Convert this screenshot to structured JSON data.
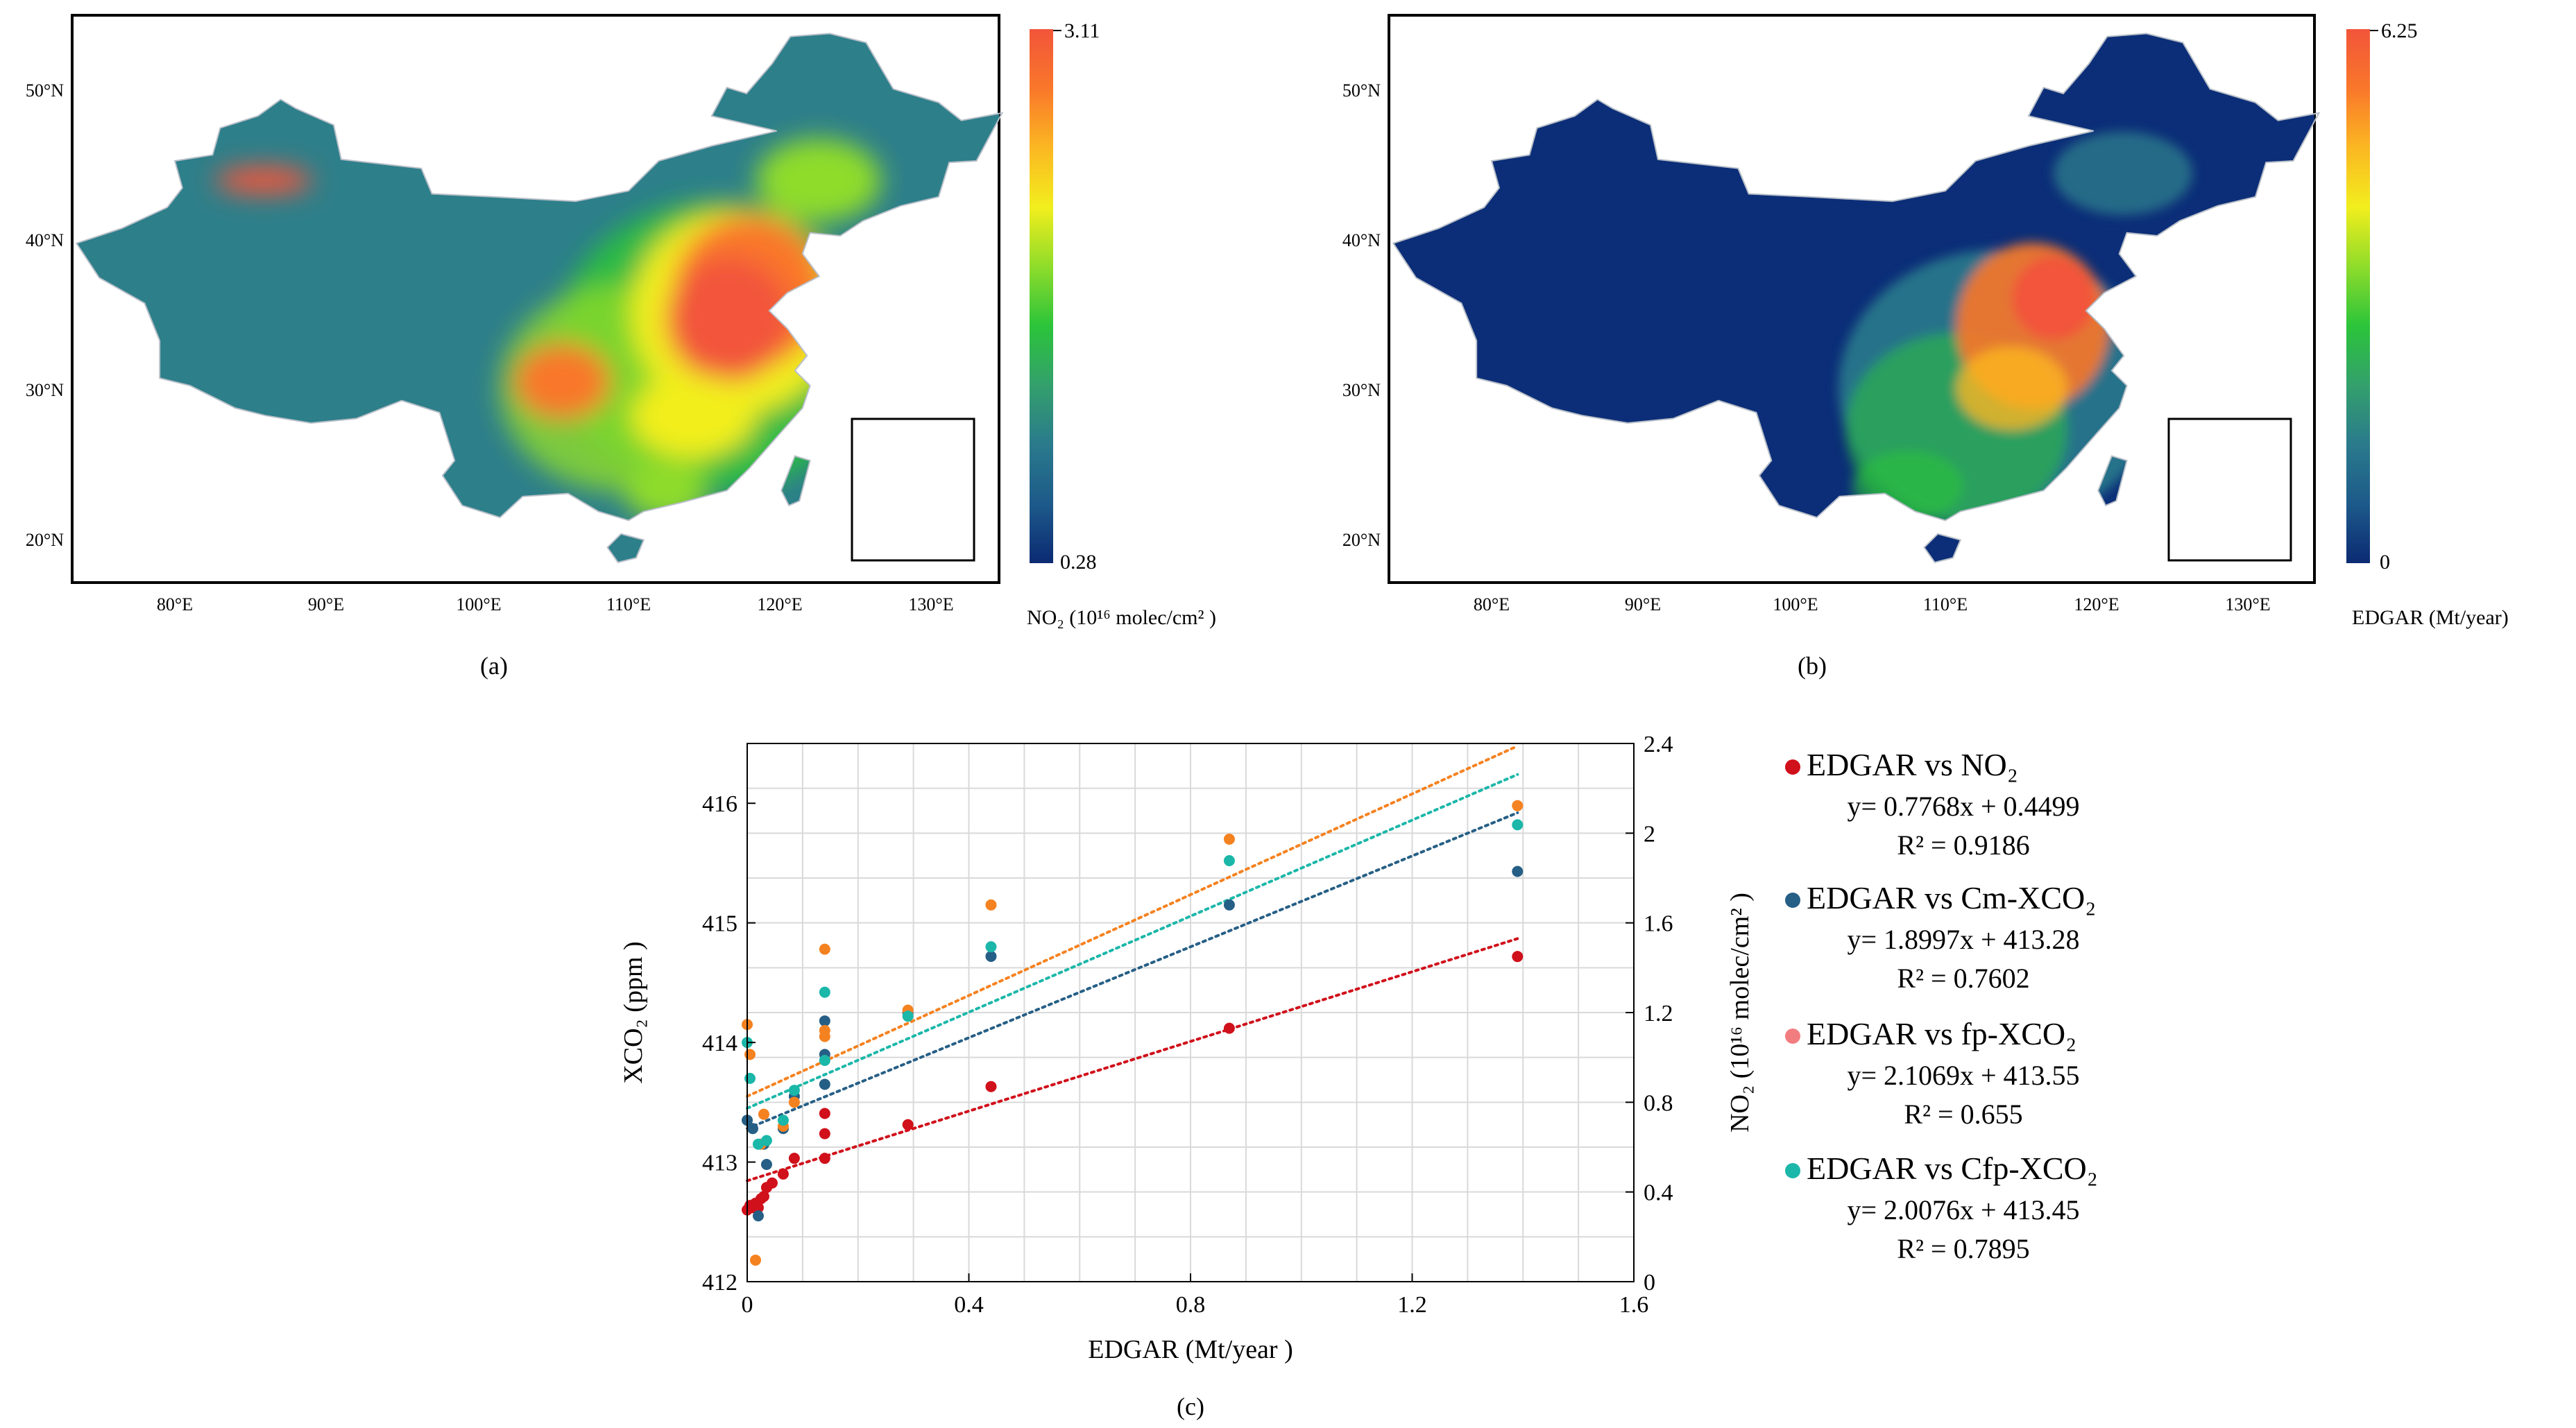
{
  "panels": {
    "a": {
      "label": "(a)",
      "lat_ticks": [
        "50°N",
        "40°N",
        "30°N",
        "20°N"
      ],
      "lon_ticks": [
        "80°E",
        "90°E",
        "100°E",
        "110°E",
        "120°E",
        "130°E"
      ],
      "colorbar": {
        "max": "3.11",
        "min": "0.28",
        "title": "NO₂ (10¹⁶ molec/cm² )",
        "colors": [
          "#0b2a72",
          "#1d5a8a",
          "#2a7a8c",
          "#33a06c",
          "#2bc43a",
          "#8fdc2a",
          "#f2ee1d",
          "#fbb722",
          "#f9772a",
          "#f2553a"
        ]
      }
    },
    "b": {
      "label": "(b)",
      "lat_ticks": [
        "50°N",
        "40°N",
        "30°N",
        "20°N"
      ],
      "lon_ticks": [
        "80°E",
        "90°E",
        "100°E",
        "110°E",
        "120°E",
        "130°E"
      ],
      "colorbar": {
        "max": "6.25",
        "min": "0",
        "title": "EDGAR (Mt/year)",
        "colors": [
          "#0b2a72",
          "#1d5a8a",
          "#2a7a8c",
          "#33a06c",
          "#2bc43a",
          "#8fdc2a",
          "#f2ee1d",
          "#fbb722",
          "#f9772a",
          "#f2553a"
        ]
      }
    },
    "c": {
      "label": "(c)"
    }
  },
  "map_colors": {
    "ocean": "#ffffff",
    "base_a": "#2d7f8a",
    "base_b": "#0c2e78",
    "border": "#b8bfc8"
  },
  "chart_data": {
    "type": "scatter",
    "title": "",
    "xlabel": "EDGAR (Mt/year )",
    "ylabel_left": "XCO₂ (ppm )",
    "ylabel_right": "NO₂ (10¹⁶ molec/cm² )",
    "xlim": [
      0,
      1.6
    ],
    "ylim_left": [
      412,
      416.5
    ],
    "ylim_right": [
      0,
      2.4
    ],
    "x_ticks": [
      "0",
      "0.4",
      "0.8",
      "1.2",
      "1.6"
    ],
    "x_tick_values": [
      0,
      0.4,
      0.8,
      1.2,
      1.6
    ],
    "y_left_ticks": [
      "412",
      "413",
      "414",
      "415",
      "416"
    ],
    "y_left_tick_values": [
      412,
      413,
      414,
      415,
      416
    ],
    "y_right_ticks": [
      "0",
      "0.4",
      "0.8",
      "1.2",
      "1.6",
      "2",
      "2.4"
    ],
    "y_right_tick_values": [
      0,
      0.4,
      0.8,
      1.2,
      1.6,
      2.0,
      2.4
    ],
    "grid": true,
    "legend_placement": "right",
    "series": [
      {
        "name": "EDGAR vs NO₂",
        "axis": "right",
        "color": "#d0101a",
        "equation": "y= 0.7768x + 0.4499",
        "r2": "R² = 0.9186",
        "fit": {
          "slope": 0.7768,
          "intercept": 0.4499
        },
        "points": [
          [
            0.0,
            0.32
          ],
          [
            0.005,
            0.34
          ],
          [
            0.01,
            0.33
          ],
          [
            0.015,
            0.35
          ],
          [
            0.02,
            0.33
          ],
          [
            0.025,
            0.37
          ],
          [
            0.03,
            0.38
          ],
          [
            0.035,
            0.42
          ],
          [
            0.045,
            0.44
          ],
          [
            0.065,
            0.48
          ],
          [
            0.085,
            0.55
          ],
          [
            0.14,
            0.55
          ],
          [
            0.14,
            0.66
          ],
          [
            0.14,
            0.75
          ],
          [
            0.29,
            0.7
          ],
          [
            0.44,
            0.87
          ],
          [
            0.87,
            1.13
          ],
          [
            1.39,
            1.45
          ]
        ]
      },
      {
        "name": "EDGAR vs Cm-XCO₂",
        "axis": "left",
        "color": "#265f86",
        "equation": "y= 1.8997x + 413.28",
        "r2": "R² = 0.7602",
        "fit": {
          "slope": 1.8997,
          "intercept": 413.28
        },
        "points": [
          [
            0.0,
            413.35
          ],
          [
            0.01,
            413.28
          ],
          [
            0.02,
            412.55
          ],
          [
            0.03,
            413.15
          ],
          [
            0.035,
            412.98
          ],
          [
            0.065,
            413.28
          ],
          [
            0.085,
            413.55
          ],
          [
            0.14,
            413.65
          ],
          [
            0.14,
            413.9
          ],
          [
            0.14,
            414.18
          ],
          [
            0.29,
            414.25
          ],
          [
            0.44,
            414.72
          ],
          [
            0.87,
            415.15
          ],
          [
            1.39,
            415.43
          ]
        ]
      },
      {
        "name": "EDGAR vs fp-XCO₂",
        "axis": "left",
        "color": "#f58220",
        "equation": "y= 2.1069x + 413.55",
        "r2": "R² = 0.655",
        "fit": {
          "slope": 2.1069,
          "intercept": 413.55
        },
        "points": [
          [
            0.0,
            414.15
          ],
          [
            0.005,
            413.9
          ],
          [
            0.015,
            412.18
          ],
          [
            0.025,
            413.15
          ],
          [
            0.03,
            413.4
          ],
          [
            0.065,
            413.3
          ],
          [
            0.085,
            413.5
          ],
          [
            0.14,
            414.05
          ],
          [
            0.14,
            414.1
          ],
          [
            0.14,
            414.78
          ],
          [
            0.29,
            414.27
          ],
          [
            0.44,
            415.15
          ],
          [
            0.87,
            415.7
          ],
          [
            1.39,
            415.98
          ]
        ]
      },
      {
        "name": "EDGAR vs Cfp-XCO₂",
        "axis": "left",
        "color": "#1bb7a9",
        "equation": "y= 2.0076x + 413.45",
        "r2": "R² = 0.7895",
        "fit": {
          "slope": 2.0076,
          "intercept": 413.45
        },
        "points": [
          [
            0.0,
            414.0
          ],
          [
            0.005,
            413.7
          ],
          [
            0.02,
            413.15
          ],
          [
            0.035,
            413.18
          ],
          [
            0.065,
            413.35
          ],
          [
            0.085,
            413.6
          ],
          [
            0.14,
            413.85
          ],
          [
            0.14,
            414.42
          ],
          [
            0.29,
            414.22
          ],
          [
            0.44,
            414.8
          ],
          [
            0.87,
            415.52
          ],
          [
            1.39,
            415.82
          ]
        ]
      }
    ]
  }
}
